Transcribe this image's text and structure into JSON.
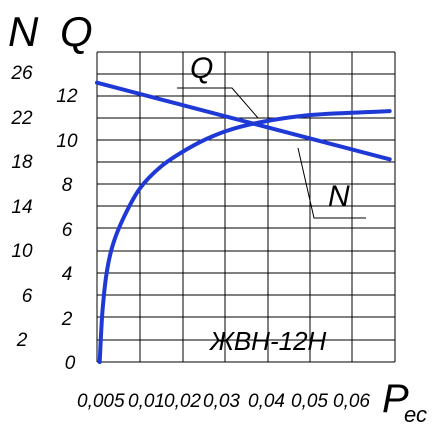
{
  "chart_data": {
    "type": "line",
    "title": "",
    "annotation": "ЖВН-12Н",
    "x_axis": {
      "label_main": "P",
      "label_sub": "ес",
      "tick_labels": [
        "0,005",
        "0,01",
        "0,02",
        "0,03",
        "0,04",
        "0,05",
        "0,06"
      ],
      "grid_range": [
        0.005,
        0.061
      ]
    },
    "y_axes": [
      {
        "label": "N",
        "ticks": [
          2,
          6,
          10,
          14,
          18,
          22,
          26
        ]
      },
      {
        "label": "Q",
        "ticks": [
          0,
          2,
          4,
          6,
          8,
          10,
          12
        ]
      }
    ],
    "grid": true,
    "series": [
      {
        "name": "Q",
        "axis": "Q",
        "color": "#1f39d6",
        "points": [
          [
            0.0055,
            0.0
          ],
          [
            0.006,
            2.2
          ],
          [
            0.0068,
            4.0
          ],
          [
            0.008,
            5.3
          ],
          [
            0.01,
            6.5
          ],
          [
            0.013,
            7.8
          ],
          [
            0.017,
            8.8
          ],
          [
            0.022,
            9.6
          ],
          [
            0.027,
            10.2
          ],
          [
            0.032,
            10.6
          ],
          [
            0.038,
            10.9
          ],
          [
            0.044,
            11.1
          ],
          [
            0.05,
            11.2
          ],
          [
            0.055,
            11.25
          ],
          [
            0.06,
            11.3
          ]
        ]
      },
      {
        "name": "N",
        "axis": "N",
        "color": "#1f39d6",
        "points": [
          [
            0.005,
            25.0
          ],
          [
            0.06,
            18.1
          ]
        ]
      }
    ],
    "series_labels": [
      "Q",
      "N"
    ]
  }
}
